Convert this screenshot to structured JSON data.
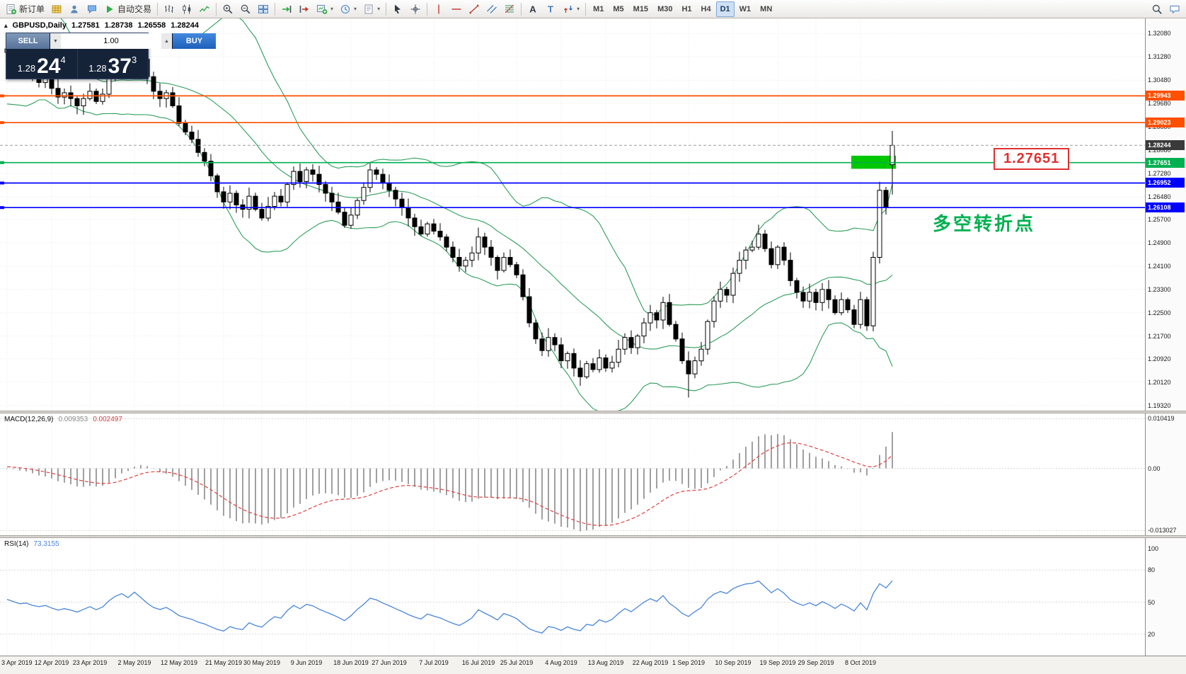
{
  "window_title": "GBPUSD Daily - MetaTrader",
  "colors": {
    "orange_line": "#ff4f00",
    "blue_line": "#0000ff",
    "green_line": "#00b050",
    "current_badge": "#3a3a3a",
    "bollinger": "#2e9e5b",
    "macd_hist": "#a0a0a0",
    "macd_signal": "#e04040",
    "rsi_line": "#4a86d8",
    "highlight_rect": "#00c800",
    "candle_up": "#ffffff",
    "candle_down": "#000000"
  },
  "toolbar": {
    "items": [
      {
        "type": "button",
        "name": "new-order-button",
        "icon": "new-order",
        "label": "新订单"
      },
      {
        "type": "button",
        "name": "layouts-button",
        "icon": "grid-gold"
      },
      {
        "type": "button",
        "name": "profile-button",
        "icon": "person"
      },
      {
        "type": "button",
        "name": "community-button",
        "icon": "bubble"
      },
      {
        "type": "button",
        "name": "autotrading-button",
        "icon": "play",
        "label": "自动交易"
      },
      {
        "type": "sep"
      },
      {
        "type": "button",
        "name": "bar-chart-button",
        "icon": "bars"
      },
      {
        "type": "button",
        "name": "candlestick-chart-button",
        "icon": "candles"
      },
      {
        "type": "button",
        "name": "line-chart-button",
        "icon": "linechart"
      },
      {
        "type": "sep"
      },
      {
        "type": "button",
        "name": "zoom-in-button",
        "icon": "zoom-in"
      },
      {
        "type": "button",
        "name": "zoom-out-button",
        "icon": "zoom-out"
      },
      {
        "type": "button",
        "name": "tile-windows-button",
        "icon": "tiles"
      },
      {
        "type": "sep"
      },
      {
        "type": "button",
        "name": "auto-scroll-button",
        "icon": "autoscroll"
      },
      {
        "type": "button",
        "name": "chart-shift-button",
        "icon": "shift"
      },
      {
        "type": "button",
        "name": "new-chart-button",
        "icon": "newchart",
        "caret": true
      },
      {
        "type": "button",
        "name": "refresh-button",
        "icon": "clock",
        "caret": true
      },
      {
        "type": "button",
        "name": "templates-button",
        "icon": "template",
        "caret": true
      },
      {
        "type": "sep"
      },
      {
        "type": "button",
        "name": "cursor-button",
        "icon": "cursor"
      },
      {
        "type": "button",
        "name": "crosshair-button",
        "icon": "crosshair"
      },
      {
        "type": "sep"
      },
      {
        "type": "button",
        "name": "vertical-line-button",
        "icon": "vline"
      },
      {
        "type": "button",
        "name": "horizontal-line-button",
        "icon": "hline"
      },
      {
        "type": "button",
        "name": "trendline-button",
        "icon": "trend"
      },
      {
        "type": "button",
        "name": "equidistant-channel-button",
        "icon": "channel"
      },
      {
        "type": "button",
        "name": "fibonacci-button",
        "icon": "fibo"
      },
      {
        "type": "sep"
      },
      {
        "type": "button",
        "name": "text-button",
        "icon": "textA"
      },
      {
        "type": "button",
        "name": "text-label-button",
        "icon": "textT"
      },
      {
        "type": "button",
        "name": "arrows-button",
        "icon": "arrows",
        "caret": true
      },
      {
        "type": "sep"
      },
      {
        "type": "timeframes"
      },
      {
        "type": "spacer"
      },
      {
        "type": "button",
        "name": "search-button",
        "icon": "search"
      },
      {
        "type": "button",
        "name": "notifications-button",
        "icon": "bubble2"
      }
    ],
    "timeframes": [
      "M1",
      "M5",
      "M15",
      "M30",
      "H1",
      "H4",
      "D1",
      "W1",
      "MN"
    ],
    "active_timeframe": "D1"
  },
  "chart": {
    "symbol_header": "GBPUSD,Daily",
    "collapse_icon": "▴",
    "ohlc": {
      "open": "1.27581",
      "high": "1.28738",
      "low": "1.26558",
      "close": "1.28244"
    },
    "trade_panel": {
      "sell_label": "SELL",
      "buy_label": "BUY",
      "volume": "1.00",
      "spinner_down_icon": "▼",
      "spinner_up_icon": "▲",
      "sell_price_small": "1.28",
      "sell_price_big": "24",
      "sell_price_sup": "4",
      "buy_price_small": "1.28",
      "buy_price_big": "37",
      "buy_price_sup": "3"
    },
    "annotations": {
      "price_label": "1.27651",
      "cn_note": "多空转折点"
    },
    "axis_ticks": [
      "1.32080",
      "1.31280",
      "1.30480",
      "1.29680",
      "1.28880",
      "1.28080",
      "1.27280",
      "1.26480",
      "1.25700",
      "1.24900",
      "1.24100",
      "1.23300",
      "1.22500",
      "1.21700",
      "1.20920",
      "1.20120",
      "1.19320"
    ]
  },
  "macd": {
    "name": "MACD(12,26,9)",
    "value_main": "0.009353",
    "value_signal": "0.002497",
    "axis": [
      {
        "label": "0.010419",
        "value": 0.010419
      },
      {
        "label": "0.00",
        "value": 0
      },
      {
        "label": "-0.013027",
        "value": -0.013027
      }
    ]
  },
  "rsi": {
    "name": "RSI(14)",
    "value": "73.3155",
    "axis": [
      {
        "label": "100",
        "value": 100
      },
      {
        "label": "80",
        "value": 80
      },
      {
        "label": "50",
        "value": 50
      },
      {
        "label": "20",
        "value": 20
      }
    ],
    "levels": [
      80,
      50,
      20
    ]
  },
  "time_axis": {
    "labels": [
      "3 Apr 2019",
      "12 Apr 2019",
      "23 Apr 2019",
      "2 May 2019",
      "12 May 2019",
      "21 May 2019",
      "30 May 2019",
      "9 Jun 2019",
      "18 Jun 2019",
      "27 Jun 2019",
      "7 Jul 2019",
      "16 Jul 2019",
      "25 Jul 2019",
      "4 Aug 2019",
      "13 Aug 2019",
      "22 Aug 2019",
      "1 Sep 2019",
      "10 Sep 2019",
      "19 Sep 2019",
      "29 Sep 2019",
      "8 Oct 2019"
    ]
  },
  "chart_data": {
    "type": "candlestick",
    "symbol": "GBPUSD",
    "timeframe": "Daily",
    "visible_bars": 140,
    "price_axis": {
      "min": 1.1914,
      "max": 1.326
    },
    "macd_axis": {
      "min": -0.014,
      "max": 0.0115
    },
    "rsi_axis": {
      "min": 0,
      "max": 110
    },
    "indicators": [
      {
        "name": "Bollinger Bands",
        "period": 20,
        "deviation": 2
      },
      {
        "name": "MACD",
        "fast": 12,
        "slow": 26,
        "signal": 9,
        "last_main": 0.009353,
        "last_signal": 0.002497
      },
      {
        "name": "RSI",
        "period": 14,
        "last_value": 73.3155
      }
    ],
    "last_candle": {
      "open": 1.27581,
      "high": 1.28738,
      "low": 1.26558,
      "close": 1.28244
    },
    "hlines": [
      {
        "price": 1.29943,
        "label": "1.29943",
        "color": "#ff4f00"
      },
      {
        "price": 1.29023,
        "label": "1.29023",
        "color": "#ff4f00"
      },
      {
        "price": 1.27651,
        "label": "1.27651",
        "color": "#00b050"
      },
      {
        "price": 1.26952,
        "label": "1.26952",
        "color": "#0000ff"
      },
      {
        "price": 1.26108,
        "label": "1.26108",
        "color": "#0000ff"
      }
    ],
    "current_price": {
      "price": 1.28244,
      "label": "1.28244",
      "color": "#3a3a3a"
    },
    "highlight_rect": {
      "start_index": 133,
      "end_index": 139,
      "top": 1.2789,
      "bottom": 1.2744,
      "color": "#00c800"
    },
    "seed_closes": [
      1.3105,
      1.3185,
      1.324,
      1.315,
      1.3005,
      1.298,
      1.3055,
      1.316,
      1.3225,
      1.3285,
      1.33,
      1.3205,
      1.312,
      1.306,
      1.315,
      1.318,
      1.309,
      1.3025,
      1.3085,
      1.313
    ],
    "closes": [
      1.3155,
      1.312,
      1.3085,
      1.3095,
      1.306,
      1.304,
      1.3055,
      1.302,
      1.299,
      1.3005,
      1.2985,
      1.296,
      1.2985,
      1.301,
      1.2975,
      1.3,
      1.306,
      1.311,
      1.314,
      1.3105,
      1.317,
      1.312,
      1.306,
      1.301,
      1.2985,
      1.3005,
      1.296,
      1.29,
      1.287,
      1.2845,
      1.28,
      1.277,
      1.272,
      1.2665,
      1.263,
      1.266,
      1.262,
      1.2605,
      1.265,
      1.2605,
      1.2575,
      1.2615,
      1.265,
      1.263,
      1.269,
      1.2735,
      1.27,
      1.274,
      1.2725,
      1.269,
      1.266,
      1.263,
      1.2595,
      1.255,
      1.2585,
      1.2635,
      1.268,
      1.274,
      1.2725,
      1.2695,
      1.267,
      1.264,
      1.261,
      1.2575,
      1.2545,
      1.252,
      1.2555,
      1.253,
      1.251,
      1.2475,
      1.244,
      1.241,
      1.243,
      1.2455,
      1.251,
      1.2475,
      1.244,
      1.2395,
      1.244,
      1.2415,
      1.238,
      1.2305,
      1.2215,
      1.216,
      1.212,
      1.2165,
      1.214,
      1.2085,
      1.211,
      1.206,
      1.203,
      1.2075,
      1.2055,
      1.2095,
      1.206,
      1.208,
      1.2125,
      1.2165,
      1.213,
      1.217,
      1.2215,
      1.225,
      1.2225,
      1.2285,
      1.221,
      1.216,
      1.2085,
      1.204,
      1.2085,
      1.2125,
      1.222,
      1.229,
      1.233,
      1.231,
      1.2385,
      1.243,
      1.2465,
      1.2475,
      1.252,
      1.247,
      1.2415,
      1.2475,
      1.243,
      1.236,
      1.232,
      1.229,
      1.232,
      1.2285,
      1.233,
      1.2295,
      1.225,
      1.2295,
      1.226,
      1.221,
      1.2295,
      1.2205,
      1.244,
      1.267,
      1.261,
      1.28244
    ],
    "overrides": {
      "20": {
        "high": 1.3178
      },
      "107": {
        "low": 1.1959
      },
      "139": {
        "open": 1.27581,
        "high": 1.28738,
        "low": 1.26558,
        "close": 1.28244
      }
    }
  }
}
